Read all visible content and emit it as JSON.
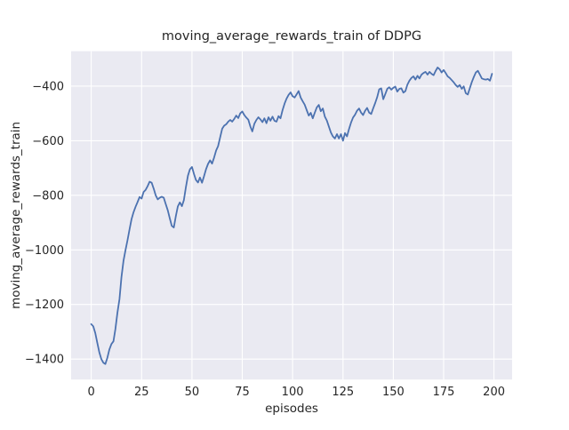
{
  "chart_data": {
    "type": "line",
    "title": "moving_average_rewards_train of DDPG",
    "xlabel": "episodes",
    "ylabel": "moving_average_rewards_train",
    "x_ticks": [
      0,
      25,
      50,
      75,
      100,
      125,
      150,
      175,
      200
    ],
    "y_ticks": [
      -400,
      -600,
      -800,
      -1000,
      -1200,
      -1400
    ],
    "xlim": [
      -10,
      209
    ],
    "ylim": [
      -1475,
      -272
    ],
    "grid": true,
    "legend_position": "none",
    "figure_bg_color": "#ffffff",
    "plot_bg_color": "#EAEAF2",
    "grid_color": "#ffffff",
    "line_color": "#4C72B0",
    "text_color": "#262626",
    "series": [
      {
        "name": "moving_average_rewards_train",
        "x_start": 0,
        "x_step": 1,
        "values": [
          -1272,
          -1280,
          -1305,
          -1340,
          -1375,
          -1400,
          -1413,
          -1418,
          -1395,
          -1365,
          -1345,
          -1335,
          -1290,
          -1230,
          -1180,
          -1100,
          -1040,
          -1000,
          -965,
          -925,
          -888,
          -862,
          -842,
          -825,
          -806,
          -812,
          -788,
          -780,
          -766,
          -750,
          -754,
          -776,
          -800,
          -815,
          -809,
          -805,
          -809,
          -832,
          -855,
          -885,
          -912,
          -918,
          -876,
          -841,
          -826,
          -840,
          -818,
          -770,
          -728,
          -705,
          -696,
          -722,
          -744,
          -753,
          -735,
          -754,
          -730,
          -705,
          -685,
          -672,
          -684,
          -662,
          -636,
          -620,
          -588,
          -556,
          -545,
          -540,
          -530,
          -524,
          -530,
          -520,
          -508,
          -517,
          -500,
          -493,
          -506,
          -515,
          -523,
          -548,
          -566,
          -538,
          -524,
          -514,
          -522,
          -532,
          -518,
          -536,
          -514,
          -527,
          -512,
          -527,
          -530,
          -510,
          -518,
          -488,
          -464,
          -446,
          -432,
          -423,
          -437,
          -442,
          -430,
          -418,
          -442,
          -456,
          -468,
          -488,
          -508,
          -498,
          -518,
          -498,
          -478,
          -469,
          -492,
          -482,
          -512,
          -526,
          -548,
          -570,
          -584,
          -592,
          -576,
          -592,
          -576,
          -600,
          -572,
          -584,
          -558,
          -534,
          -515,
          -505,
          -490,
          -482,
          -497,
          -506,
          -490,
          -480,
          -497,
          -502,
          -482,
          -462,
          -440,
          -412,
          -408,
          -448,
          -430,
          -410,
          -404,
          -413,
          -406,
          -402,
          -420,
          -410,
          -408,
          -424,
          -418,
          -395,
          -380,
          -370,
          -364,
          -376,
          -362,
          -372,
          -358,
          -352,
          -348,
          -358,
          -348,
          -355,
          -360,
          -345,
          -332,
          -338,
          -350,
          -341,
          -352,
          -364,
          -370,
          -378,
          -386,
          -396,
          -403,
          -396,
          -410,
          -401,
          -426,
          -431,
          -408,
          -385,
          -366,
          -350,
          -344,
          -358,
          -372,
          -375,
          -376,
          -374,
          -380,
          -355
        ]
      }
    ]
  }
}
